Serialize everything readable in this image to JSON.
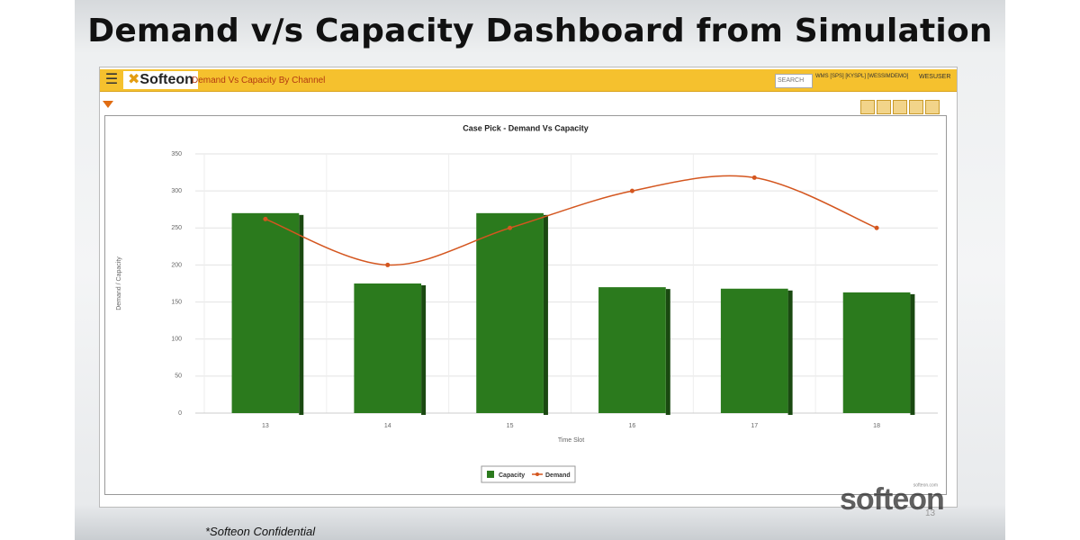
{
  "slide": {
    "title": "Demand v/s Capacity Dashboard from Simulation",
    "footer": "*Softeon Confidential",
    "page_number": "13",
    "brand": "softeon"
  },
  "app": {
    "logo": "Softeon",
    "page_name": "Demand Vs Capacity By Channel",
    "search": "SEARCH",
    "context": "WMS [SPS] [KYSPL] [WESSIMDEMO]",
    "user": "WESUSER"
  },
  "chart_data": {
    "type": "bar",
    "title": "Case Pick - Demand Vs Capacity",
    "x_label": "Time Slot",
    "y_label": "Demand / Capacity",
    "credit": "softeon.com",
    "categories": [
      "13",
      "14",
      "15",
      "16",
      "17",
      "18"
    ],
    "series": [
      {
        "name": "Capacity",
        "type": "bar",
        "color": "#2b7a1d",
        "values": [
          270,
          175,
          270,
          170,
          168,
          163
        ]
      },
      {
        "name": "Demand",
        "type": "line",
        "color": "#d4561f",
        "values": [
          262,
          200,
          250,
          300,
          318,
          250
        ]
      }
    ],
    "ylim": [
      0,
      350
    ],
    "yticks": [
      0,
      50,
      100,
      150,
      200,
      250,
      300,
      350
    ],
    "grid": true,
    "legend": "bottom"
  }
}
